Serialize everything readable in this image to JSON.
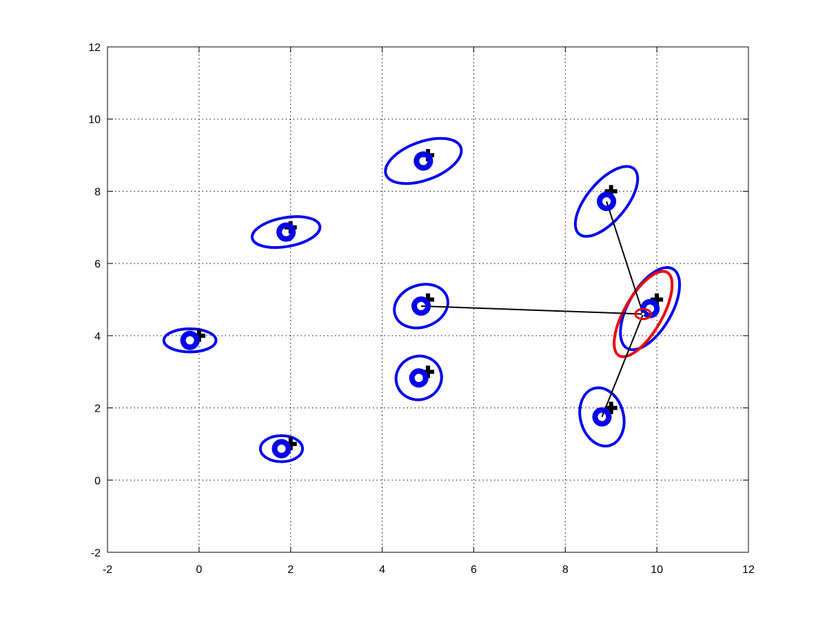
{
  "chart_data": {
    "type": "scatter",
    "title": "",
    "xlabel": "",
    "ylabel": "",
    "xlim": [
      -2,
      12
    ],
    "ylim": [
      -2,
      12
    ],
    "xticks": [
      -2,
      0,
      2,
      4,
      6,
      8,
      10,
      12
    ],
    "yticks": [
      -2,
      0,
      2,
      4,
      6,
      8,
      10,
      12
    ],
    "xtick_labels": [
      "-2",
      "0",
      "2",
      "4",
      "6",
      "8",
      "10",
      "12"
    ],
    "ytick_labels": [
      "-2",
      "0",
      "2",
      "4",
      "6",
      "8",
      "10",
      "12"
    ],
    "grid": true,
    "grid_style": "dotted",
    "colors": {
      "estimate": "#0000ee",
      "truth": "#000000",
      "robot": "#ee0000",
      "link": "#000000",
      "frame": "#000000"
    },
    "landmarks": [
      {
        "truth": [
          0,
          4
        ],
        "estimate": [
          -0.2,
          3.87
        ],
        "ellipse": {
          "rx": 0.57,
          "ry": 0.32,
          "angle": 0
        }
      },
      {
        "truth": [
          2,
          1
        ],
        "estimate": [
          1.8,
          0.87
        ],
        "ellipse": {
          "rx": 0.46,
          "ry": 0.36,
          "angle": 0
        }
      },
      {
        "truth": [
          2,
          7
        ],
        "estimate": [
          1.9,
          6.87
        ],
        "ellipse": {
          "rx": 0.75,
          "ry": 0.4,
          "angle": -10
        }
      },
      {
        "truth": [
          5,
          9
        ],
        "estimate": [
          4.9,
          8.84
        ],
        "ellipse": {
          "rx": 0.87,
          "ry": 0.53,
          "angle": -20
        }
      },
      {
        "truth": [
          5,
          5
        ],
        "estimate": [
          4.85,
          4.82
        ],
        "ellipse": {
          "rx": 0.6,
          "ry": 0.58,
          "angle": -20
        }
      },
      {
        "truth": [
          5,
          3
        ],
        "estimate": [
          4.8,
          2.83
        ],
        "ellipse": {
          "rx": 0.5,
          "ry": 0.6,
          "angle": -20
        }
      },
      {
        "truth": [
          9,
          8
        ],
        "estimate": [
          8.9,
          7.72
        ],
        "ellipse": {
          "rx": 0.93,
          "ry": 0.54,
          "angle": -50
        }
      },
      {
        "truth": [
          9,
          2
        ],
        "estimate": [
          8.8,
          1.75
        ],
        "ellipse": {
          "rx": 0.47,
          "ry": 0.82,
          "angle": -15
        }
      },
      {
        "truth": [
          10,
          5
        ],
        "estimate": [
          9.85,
          4.75
        ],
        "ellipse": {
          "rx": 1.0,
          "ry": 0.6,
          "angle": -60
        }
      }
    ],
    "robot": {
      "position": [
        9.7,
        4.6
      ],
      "inner_ellipse": {
        "rx": 0.17,
        "ry": 0.14,
        "angle": 0
      },
      "outer_ellipse": {
        "rx": 1.05,
        "ry": 0.52,
        "angle": -60
      }
    },
    "observations": [
      [
        8.9,
        7.72
      ],
      [
        4.85,
        4.82
      ],
      [
        8.8,
        1.75
      ]
    ]
  }
}
